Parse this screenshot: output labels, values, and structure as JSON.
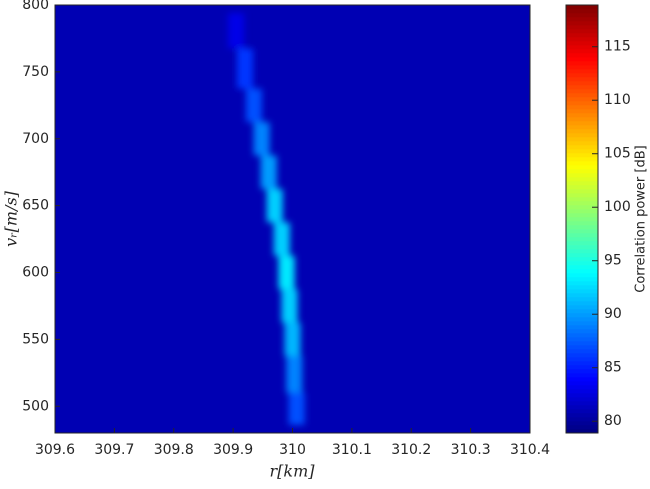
{
  "chart_data": {
    "type": "heatmap",
    "x_label": "r[km]",
    "y_label": "vᵣ[m/s]",
    "colorbar_label": "Correlation power [dB]",
    "colormap": "jet",
    "x": [
      310.007,
      310.003,
      310.0,
      309.995,
      309.99,
      309.982,
      309.97,
      309.96,
      309.948,
      309.935,
      309.92,
      309.905
    ],
    "y": [
      495,
      525,
      550,
      575,
      600,
      625,
      650,
      675,
      700,
      725,
      750,
      785
    ],
    "values": [
      87,
      89,
      91,
      92,
      93,
      92,
      92,
      90,
      89,
      87,
      86,
      83
    ],
    "xlim": [
      309.6,
      310.4
    ],
    "xticks": [
      309.6,
      309.7,
      309.8,
      309.9,
      310,
      310.1,
      310.2,
      310.3,
      310.4
    ],
    "ylim": [
      480,
      800
    ],
    "yticks": [
      500,
      550,
      600,
      650,
      700,
      750,
      800
    ],
    "clim": [
      78.9,
      118.9
    ],
    "cticks": [
      80,
      85,
      90,
      95,
      100,
      105,
      110,
      115
    ]
  }
}
